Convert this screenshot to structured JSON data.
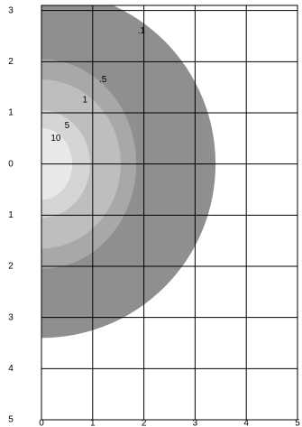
{
  "chart_data": {
    "type": "contour",
    "contours": [
      {
        "level": 0.1,
        "label": ".1",
        "color": "#8f8f8f",
        "x_extent": 3.4,
        "y_extent": 3.4
      },
      {
        "level": 0.5,
        "label": ".5",
        "color": "#a8a8a8",
        "x_extent": 1.85,
        "y_extent": 2.05
      },
      {
        "level": 1,
        "label": "1",
        "color": "#bebebe",
        "x_extent": 1.55,
        "y_extent": 1.65
      },
      {
        "level": 5,
        "label": "5",
        "color": "#d5d5d5",
        "x_extent": 0.95,
        "y_extent": 1.05
      },
      {
        "level": 10,
        "label": "10",
        "color": "#e9e9e9",
        "x_extent": 0.6,
        "y_extent": 0.7
      }
    ],
    "xlim": [
      0,
      5
    ],
    "xticks": [
      0,
      1,
      2,
      3,
      4,
      5
    ],
    "ylim": [
      -5,
      3.1
    ],
    "yticks": [
      3,
      2,
      1,
      0,
      {
        "value": -1,
        "label": "1"
      },
      {
        "value": -2,
        "label": "2"
      },
      {
        "value": -3,
        "label": "3"
      },
      {
        "value": -4,
        "label": "4"
      },
      {
        "value": -5,
        "label": "5"
      }
    ],
    "grid": true
  }
}
